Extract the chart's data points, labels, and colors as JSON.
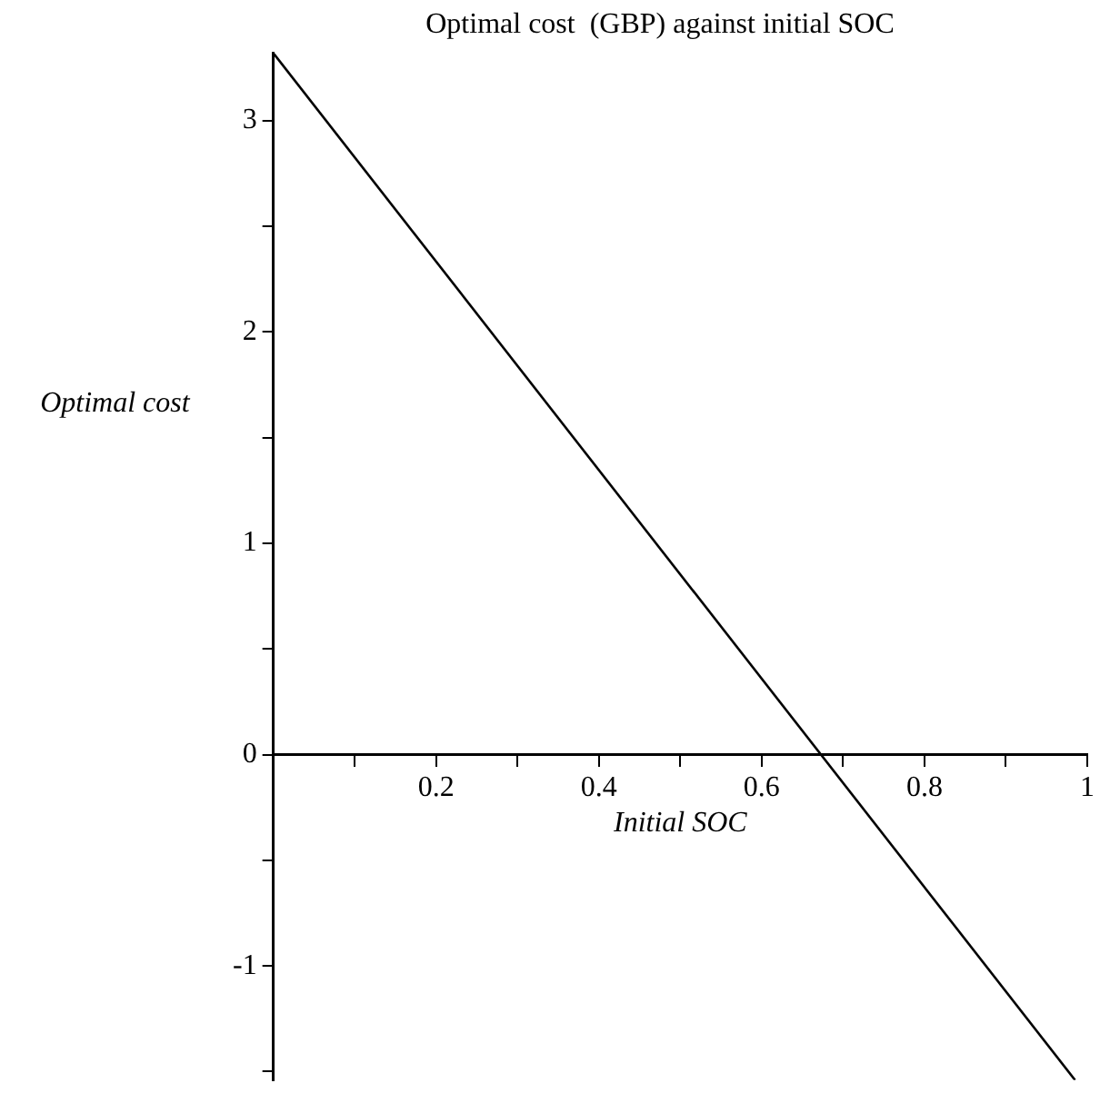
{
  "chart_data": {
    "type": "line",
    "title": "Optimal cost  (GBP) against initial SOC",
    "xlabel": "Initial SOC",
    "ylabel": "Optimal cost",
    "x": [
      0,
      0.985
    ],
    "series": [
      {
        "color": "#000000",
        "values": [
          3.32,
          -1.54
        ]
      }
    ],
    "xlim": [
      0,
      1
    ],
    "xticks": [
      {
        "value": 0.1,
        "label": null
      },
      0.2,
      {
        "value": 0.3,
        "label": null
      },
      0.4,
      {
        "value": 0.5,
        "label": null
      },
      0.6,
      {
        "value": 0.7,
        "label": null
      },
      0.8,
      {
        "value": 0.9,
        "label": null
      },
      1
    ],
    "ylim": [
      -1.54,
      3.32
    ],
    "yticks": [
      {
        "value": -1.5,
        "label": null
      },
      -1,
      {
        "value": -0.5,
        "label": null
      },
      0,
      {
        "value": 0.5,
        "label": null
      },
      1,
      {
        "value": 1.5,
        "label": null
      },
      2,
      {
        "value": 2.5,
        "label": null
      },
      3
    ],
    "grid": false,
    "legend": false,
    "marker": "none",
    "line_style": "solid"
  }
}
